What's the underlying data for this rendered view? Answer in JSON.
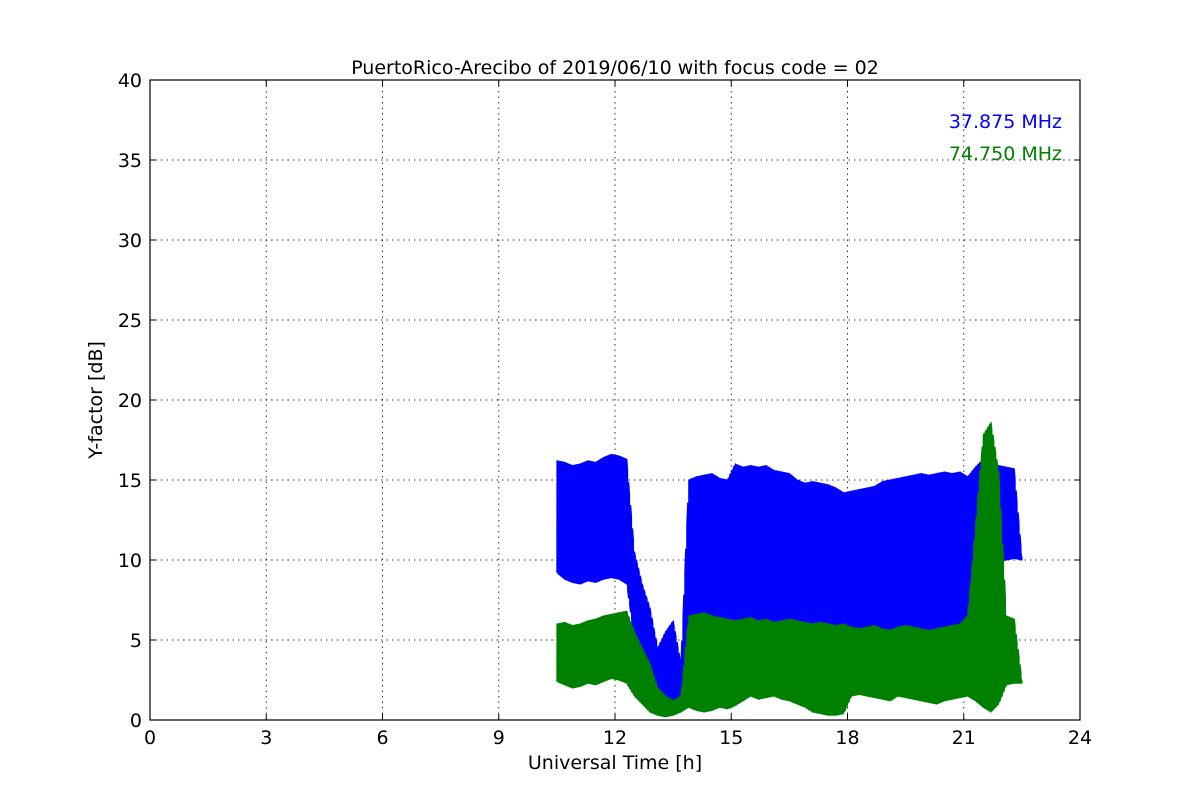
{
  "chart_data": {
    "type": "line",
    "title": "PuertoRico-Arecibo of 2019/06/10 with focus code = 02",
    "xlabel": "Universal Time [h]",
    "ylabel": "Y-factor [dB]",
    "xlim": [
      0,
      24
    ],
    "ylim": [
      0,
      40
    ],
    "xticks": [
      0,
      3,
      6,
      9,
      12,
      15,
      18,
      21,
      24
    ],
    "yticks": [
      0,
      5,
      10,
      15,
      20,
      25,
      30,
      35,
      40
    ],
    "grid": true,
    "legend_position": "top-right",
    "series": [
      {
        "name": "37.875 MHz",
        "color": "#0000ff",
        "x": [
          10.5,
          10.7,
          10.9,
          11.1,
          11.3,
          11.5,
          11.7,
          11.9,
          12.1,
          12.3,
          12.5,
          12.7,
          12.9,
          13.1,
          13.3,
          13.5,
          13.7,
          13.9,
          14.1,
          14.3,
          14.5,
          14.7,
          14.9,
          15.1,
          15.3,
          15.5,
          15.7,
          15.9,
          16.1,
          16.3,
          16.5,
          16.7,
          16.9,
          17.1,
          17.3,
          17.5,
          17.7,
          17.9,
          18.1,
          18.3,
          18.5,
          18.7,
          18.9,
          19.1,
          19.3,
          19.5,
          19.7,
          19.9,
          20.1,
          20.3,
          20.5,
          20.7,
          20.9,
          21.1,
          21.3,
          21.5,
          21.7,
          21.9,
          22.1,
          22.3,
          22.5
        ],
        "upper": [
          16.2,
          16.1,
          15.9,
          16.0,
          16.2,
          16.1,
          16.4,
          16.6,
          16.5,
          16.3,
          10.5,
          8.5,
          7.0,
          4.5,
          5.5,
          6.2,
          3.5,
          15.0,
          15.2,
          15.3,
          15.4,
          15.1,
          15.0,
          16.0,
          15.8,
          15.9,
          15.8,
          15.9,
          15.6,
          15.5,
          15.4,
          15.0,
          14.8,
          14.9,
          14.8,
          14.7,
          14.5,
          14.2,
          14.3,
          14.4,
          14.5,
          14.6,
          14.9,
          15.0,
          15.1,
          15.2,
          15.3,
          15.4,
          15.3,
          15.4,
          15.5,
          15.4,
          15.5,
          15.2,
          15.8,
          16.3,
          16.0,
          15.9,
          15.8,
          15.7,
          10.2
        ],
        "lower": [
          9.2,
          8.8,
          8.6,
          8.5,
          8.7,
          8.6,
          8.8,
          8.9,
          8.8,
          8.5,
          5.0,
          2.5,
          1.8,
          1.2,
          1.0,
          0.8,
          1.5,
          2.0,
          4.5,
          5.5,
          6.0,
          5.8,
          5.5,
          5.7,
          5.9,
          6.0,
          5.8,
          5.6,
          5.9,
          6.0,
          5.9,
          5.8,
          5.6,
          5.5,
          5.4,
          5.3,
          2.0,
          1.8,
          5.6,
          5.7,
          5.6,
          5.5,
          5.4,
          5.5,
          5.6,
          5.5,
          5.4,
          5.5,
          5.6,
          5.5,
          5.4,
          5.6,
          5.5,
          6.0,
          9.5,
          10.0,
          9.8,
          9.9,
          10.0,
          10.1,
          10.0
        ]
      },
      {
        "name": "74.750 MHz",
        "color": "#008000",
        "x": [
          10.5,
          10.7,
          10.9,
          11.1,
          11.3,
          11.5,
          11.7,
          11.9,
          12.1,
          12.3,
          12.5,
          12.7,
          12.9,
          13.1,
          13.3,
          13.5,
          13.7,
          13.9,
          14.1,
          14.3,
          14.5,
          14.7,
          14.9,
          15.1,
          15.3,
          15.5,
          15.7,
          15.9,
          16.1,
          16.3,
          16.5,
          16.7,
          16.9,
          17.1,
          17.3,
          17.5,
          17.7,
          17.9,
          18.1,
          18.3,
          18.5,
          18.7,
          18.9,
          19.1,
          19.3,
          19.5,
          19.7,
          19.9,
          20.1,
          20.3,
          20.5,
          20.7,
          20.9,
          21.1,
          21.3,
          21.5,
          21.7,
          21.9,
          22.1,
          22.3,
          22.5
        ],
        "upper": [
          6.0,
          6.1,
          5.9,
          6.0,
          6.2,
          6.3,
          6.5,
          6.6,
          6.7,
          6.8,
          5.5,
          4.5,
          3.5,
          2.0,
          1.5,
          1.2,
          1.5,
          6.5,
          6.6,
          6.7,
          6.5,
          6.4,
          6.3,
          6.2,
          6.3,
          6.4,
          6.2,
          6.3,
          6.1,
          6.2,
          6.3,
          6.2,
          6.1,
          6.0,
          6.1,
          6.0,
          5.9,
          6.0,
          5.8,
          5.7,
          5.8,
          5.9,
          5.7,
          5.6,
          5.8,
          5.9,
          5.8,
          5.7,
          5.6,
          5.7,
          5.8,
          5.9,
          6.0,
          6.5,
          12.0,
          17.8,
          18.6,
          15.5,
          6.5,
          6.3,
          2.5
        ],
        "lower": [
          2.4,
          2.2,
          2.0,
          2.1,
          2.3,
          2.2,
          2.4,
          2.6,
          2.5,
          2.3,
          1.5,
          1.0,
          0.5,
          0.3,
          0.2,
          0.3,
          0.5,
          0.8,
          0.6,
          0.5,
          0.6,
          0.8,
          0.7,
          0.9,
          1.2,
          1.5,
          1.3,
          1.4,
          1.5,
          1.3,
          1.2,
          1.0,
          0.8,
          0.5,
          0.4,
          0.3,
          0.3,
          0.4,
          1.5,
          1.6,
          1.5,
          1.4,
          1.3,
          1.2,
          1.5,
          1.4,
          1.3,
          1.2,
          1.1,
          1.0,
          1.2,
          1.3,
          1.4,
          1.5,
          1.2,
          0.8,
          0.5,
          1.0,
          2.2,
          2.3,
          2.3
        ]
      }
    ]
  }
}
